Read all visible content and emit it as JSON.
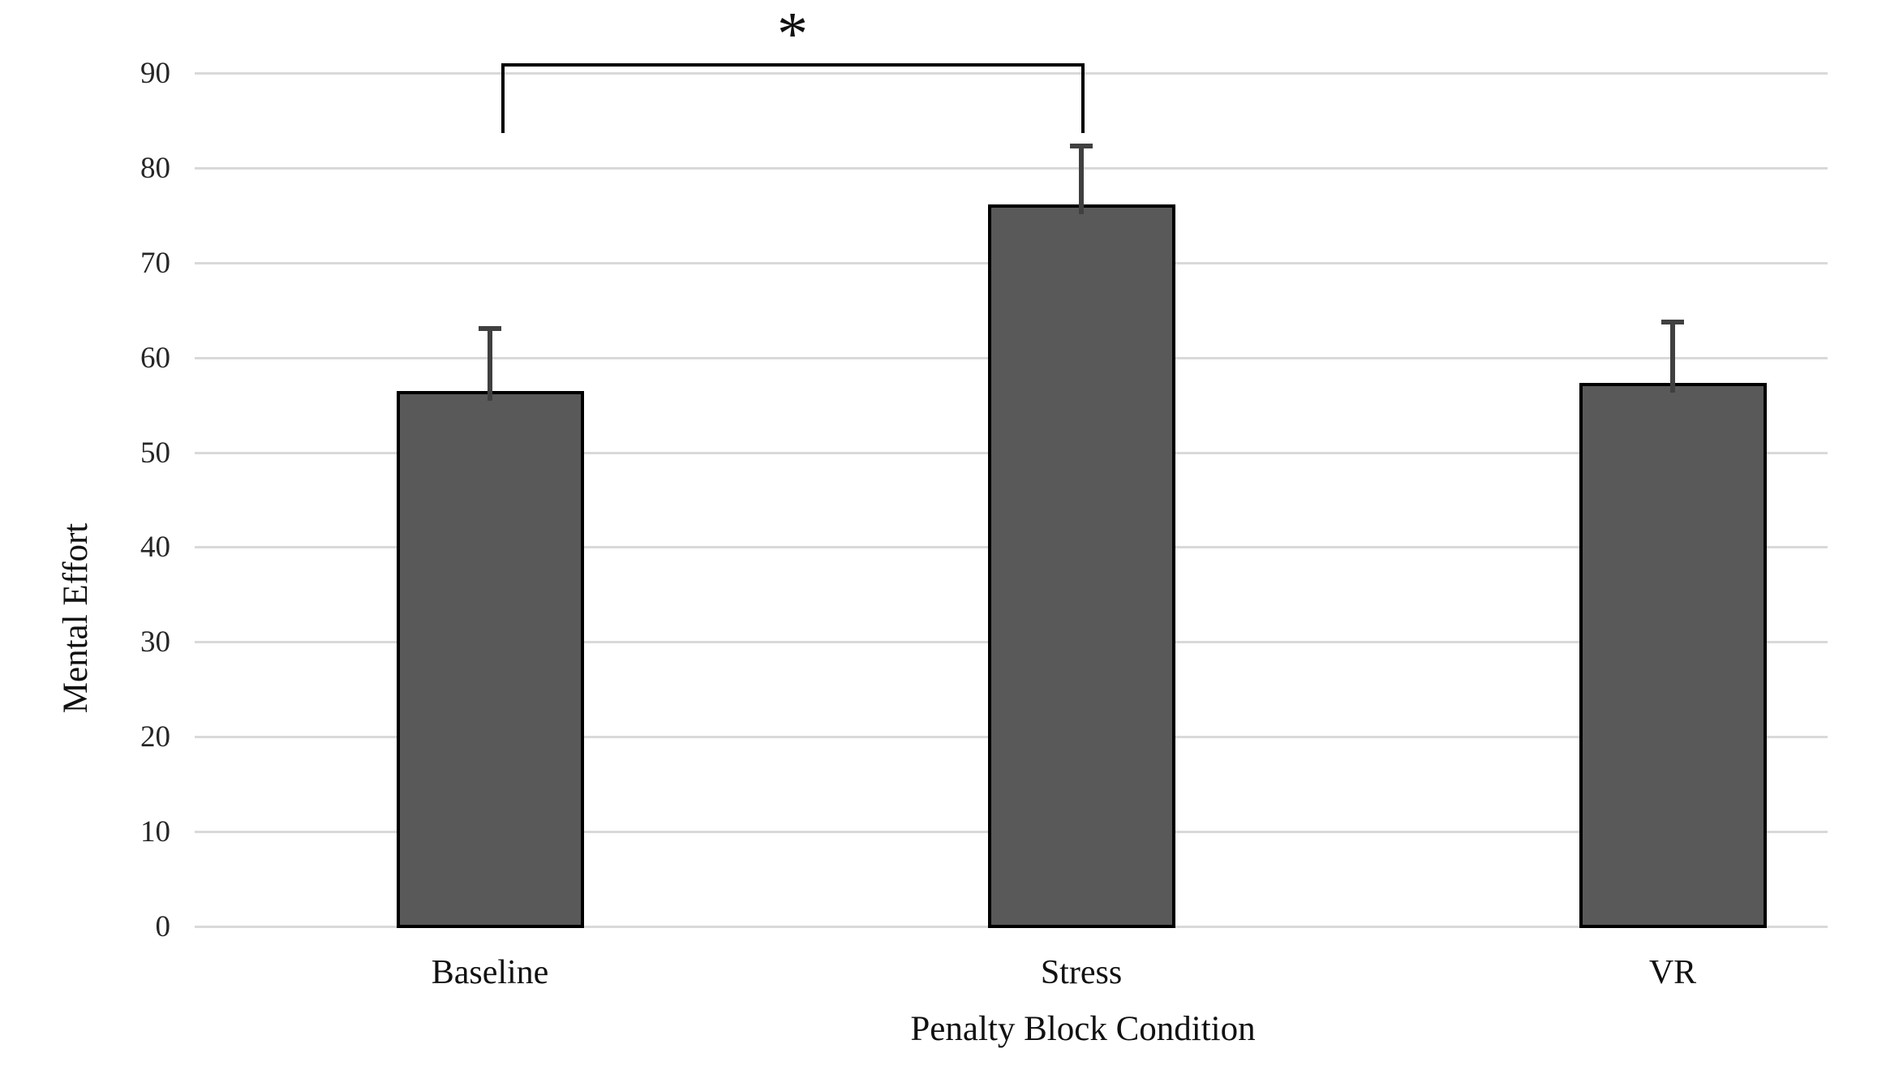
{
  "chart_data": {
    "type": "bar",
    "title": "",
    "xlabel": "Penalty Block Condition",
    "ylabel": "Mental Effort",
    "categories": [
      "Baseline",
      "Stress",
      "VR"
    ],
    "series": [
      {
        "name": "Mental Effort",
        "values": [
          56.5,
          76.2,
          57.4
        ],
        "errors_upper": [
          6.6,
          6.2,
          6.4
        ]
      }
    ],
    "ylim": [
      0,
      90
    ],
    "yticks": [
      0,
      10,
      20,
      30,
      40,
      50,
      60,
      70,
      80,
      90
    ],
    "grid": true,
    "legend": "none",
    "significance": {
      "from": "Baseline",
      "to": "Stress",
      "label": "*"
    },
    "colors": {
      "bar_fill": "#595959",
      "bar_border": "#000000",
      "error_bar": "#404040",
      "gridline": "#d9d9d9",
      "text": "#1a1a1a",
      "background": "#ffffff"
    }
  }
}
